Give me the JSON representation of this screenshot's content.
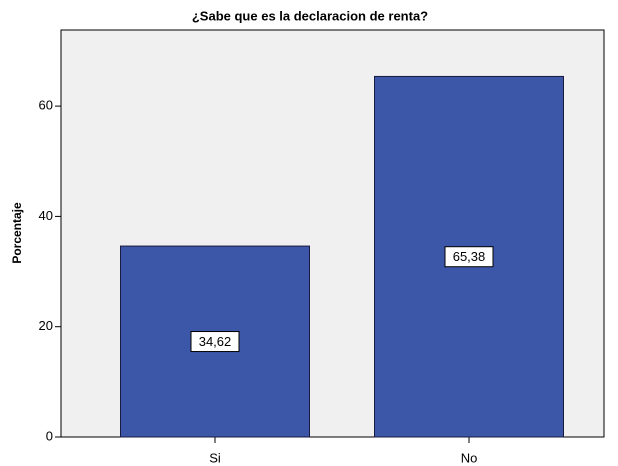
{
  "chart_data": {
    "type": "bar",
    "title": "¿Sabe que es la declaracion de renta?",
    "y_label": "Porcentaje",
    "categories": [
      "Si",
      "No"
    ],
    "values": [
      34.62,
      65.38
    ],
    "value_labels": [
      "34,62",
      "65,38"
    ],
    "color": "#3c56a8",
    "ylim": [
      0,
      73.8
    ],
    "yticks": [
      0,
      20,
      40,
      60
    ],
    "grid": false
  }
}
